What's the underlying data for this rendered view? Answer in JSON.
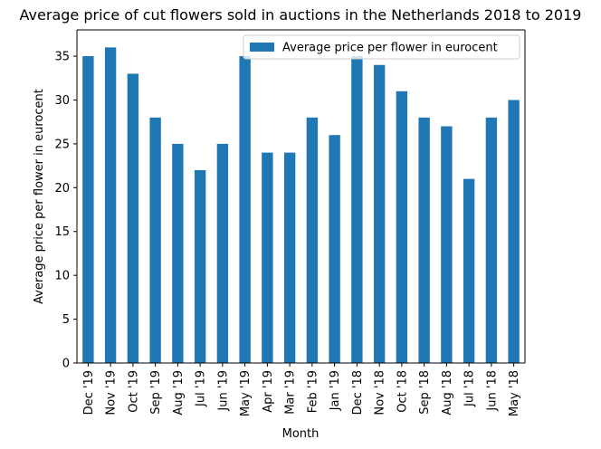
{
  "chart_data": {
    "type": "bar",
    "title": "Average price of cut flowers sold in auctions in the Netherlands 2018 to 2019",
    "xlabel": "Month",
    "ylabel": "Average price per flower in eurocent",
    "categories": [
      "Dec '19",
      "Nov '19",
      "Oct '19",
      "Sep '19",
      "Aug '19",
      "Jul '19",
      "Jun '19",
      "May '19",
      "Apr '19",
      "Mar '19",
      "Feb '19",
      "Jan '19",
      "Dec '18",
      "Nov '18",
      "Oct '18",
      "Sep '18",
      "Aug '18",
      "Jul '18",
      "Jun '18",
      "May '18"
    ],
    "series": [
      {
        "name": "Average price per flower in eurocent",
        "color": "#1f77b4",
        "values": [
          35,
          36,
          33,
          28,
          25,
          22,
          25,
          35,
          24,
          24,
          28,
          26,
          35,
          34,
          31,
          28,
          27,
          21,
          28,
          30
        ]
      }
    ],
    "ylim": [
      0,
      38.0
    ],
    "yticks": [
      0,
      5,
      10,
      15,
      20,
      25,
      30,
      35
    ],
    "grid": false,
    "legend_position": "top-right"
  }
}
